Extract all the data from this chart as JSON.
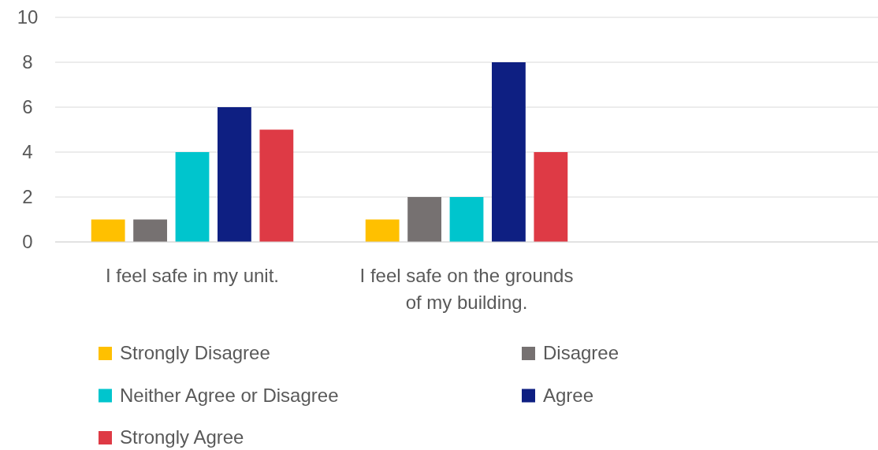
{
  "chart_data": {
    "type": "bar",
    "categories": [
      "I feel safe in my unit.",
      "I feel safe on the grounds of my building.",
      null
    ],
    "series": [
      {
        "name": "Strongly Disagree",
        "color": "#ffc000",
        "values": [
          1,
          1,
          null
        ]
      },
      {
        "name": "Disagree",
        "color": "#767171",
        "values": [
          1,
          2,
          null
        ]
      },
      {
        "name": "Neither Agree or Disagree",
        "color": "#00c5cd",
        "values": [
          4,
          2,
          null
        ]
      },
      {
        "name": "Agree",
        "color": "#0e1f82",
        "values": [
          6,
          8,
          null
        ]
      },
      {
        "name": "Strongly Agree",
        "color": "#de3a45",
        "values": [
          5,
          4,
          null
        ]
      }
    ],
    "ylim": [
      0,
      10
    ],
    "yticks": [
      0,
      2,
      4,
      6,
      8,
      10
    ],
    "grid": "y",
    "legend": "bottom"
  }
}
